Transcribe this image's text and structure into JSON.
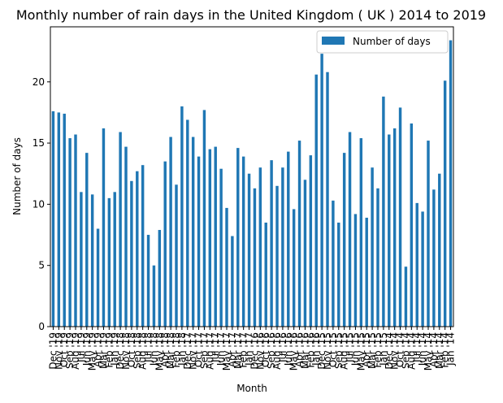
{
  "chart_data": {
    "type": "bar",
    "title": "Monthly number of rain days in the United Kingdom ( UK ) 2014 to 2019",
    "xlabel": "Month",
    "ylabel": "Number of days",
    "ylim": [
      0,
      24.5
    ],
    "yticks": [
      0,
      5,
      10,
      15,
      20
    ],
    "grid": false,
    "legend_position": "top-right",
    "bar_color": "#1f77b4",
    "categories": [
      "Dec '19",
      "Nov '19",
      "Oct '19",
      "Sep '19",
      "Aug '19",
      "Jul '19",
      "Jun '19",
      "May '19",
      "Apr '19",
      "Mar '19",
      "Feb '19",
      "Jan '19",
      "Dec '18",
      "Nov '18",
      "Oct '18",
      "Sep '18",
      "Aug '18",
      "Jul '18",
      "Jun '18",
      "May '18",
      "Apr '18",
      "Mar '18",
      "Feb '18",
      "Jan '18",
      "Dec '17",
      "Nov '17",
      "Oct '17",
      "Sep '17",
      "Aug '17",
      "Jul '17",
      "Jun '17",
      "May '17",
      "Apr '17",
      "Mar '17",
      "Feb '17",
      "Jan '17",
      "Dec '16",
      "Nov '16",
      "Oct '16",
      "Sep '16",
      "Aug '16",
      "Jul '16",
      "Jun '16",
      "May '16",
      "Apr '16",
      "Mar '16",
      "Feb '16",
      "Jan '16",
      "Dec '15",
      "Nov '15",
      "Oct '15",
      "Sep '15",
      "Aug '15",
      "Jul '15",
      "Jun '15",
      "May '15",
      "Apr '15",
      "Mar '15",
      "Feb '15",
      "Jan '15",
      "Dec '14",
      "Nov '14",
      "Oct '14",
      "Sep '14",
      "Aug '14",
      "Jul '14",
      "Jun '14",
      "May '14",
      "Apr '14",
      "Mar '14",
      "Feb '14",
      "Jan '14"
    ],
    "series": [
      {
        "name": "Number of days",
        "values": [
          17.6,
          17.5,
          17.4,
          15.4,
          15.7,
          11.0,
          14.2,
          10.8,
          8.0,
          16.2,
          10.5,
          11.0,
          15.9,
          14.7,
          11.9,
          12.7,
          13.2,
          7.5,
          5.0,
          7.9,
          13.5,
          15.5,
          11.6,
          18.0,
          16.9,
          15.5,
          13.9,
          17.7,
          14.5,
          14.7,
          12.9,
          9.7,
          7.4,
          14.6,
          13.9,
          12.5,
          11.3,
          13.0,
          8.5,
          13.6,
          11.5,
          13.0,
          14.3,
          9.6,
          15.2,
          12.0,
          14.0,
          20.6,
          22.3,
          20.8,
          10.3,
          8.5,
          14.2,
          15.9,
          9.2,
          15.4,
          8.9,
          13.0,
          11.3,
          18.8,
          15.7,
          16.2,
          17.9,
          4.9,
          16.6,
          10.1,
          9.4,
          15.2,
          11.2,
          12.5,
          20.1,
          23.4
        ]
      }
    ]
  }
}
